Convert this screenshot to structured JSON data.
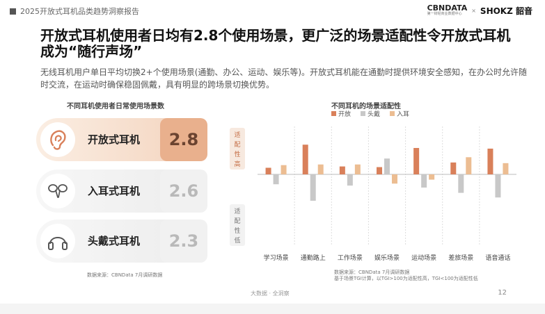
{
  "header": {
    "report_title": "2025开放式耳机品类趋势洞察报告"
  },
  "brand": {
    "cbn": "CBNDATA",
    "cbn_sub": "第一财经商业数据中心",
    "x": "×",
    "shokz": "SHOKZ 韶音"
  },
  "title": "开放式耳机使用者日均有2.8个使用场景，更广泛的场景适配性令开放式耳机成为“随行声场”",
  "description": "无线耳机用户单日平均切换2+个使用场景(通勤、办公、运动、娱乐等)。开放式耳机能在通勤时提供环境安全感知，在办公时允许随时交流，在运动时确保稳固佩戴，具有明显的跨场景切换优势。",
  "left_panel": {
    "subtitle": "不同耳机使用者日常使用场景数",
    "rows": [
      {
        "label": "开放式耳机",
        "value": "2.8",
        "icon": "ear-icon"
      },
      {
        "label": "入耳式耳机",
        "value": "2.6",
        "icon": "earbuds-icon"
      },
      {
        "label": "头戴式耳机",
        "value": "2.3",
        "icon": "headphones-icon"
      }
    ],
    "source": "数据来源：CBNData 7月调研数据"
  },
  "right_panel": {
    "subtitle": "不同耳机的场景适配性",
    "axis_high": "适配性高",
    "axis_low": "适配性低",
    "source_line1": "数据来源：CBNData 7月调研数据",
    "source_line2": "基于场景TGI计算，以TGI>100为适配性高，TGI<100为适配性低"
  },
  "chart_data": {
    "type": "bar",
    "categories": [
      "学习场景",
      "通勤路上",
      "工作场景",
      "娱乐场景",
      "运动场景",
      "差旅场景",
      "语音通话"
    ],
    "series": [
      {
        "name": "开放",
        "color": "#d9805a",
        "values": [
          110,
          145,
          112,
          111,
          140,
          118,
          139
        ]
      },
      {
        "name": "头戴",
        "color": "#c8c8c8",
        "values": [
          85,
          60,
          83,
          124,
          80,
          72,
          65
        ]
      },
      {
        "name": "入耳",
        "color": "#ecbd92",
        "values": [
          114,
          115,
          115,
          86,
          92,
          126,
          117
        ]
      }
    ],
    "baseline": 100,
    "ylim": [
      50,
      150
    ],
    "legend": "top"
  },
  "footer": {
    "text": "大数据 · 全洞察",
    "page": "12"
  }
}
